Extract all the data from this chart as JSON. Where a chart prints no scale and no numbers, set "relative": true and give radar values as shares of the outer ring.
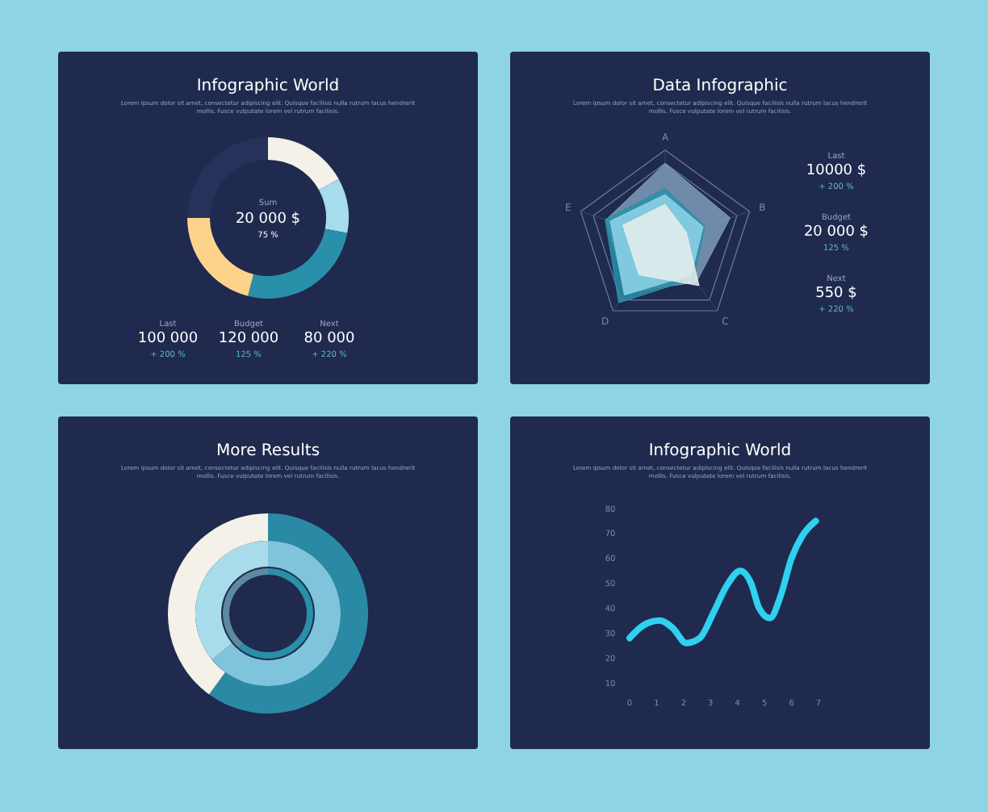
{
  "chart_data": [
    {
      "type": "donut",
      "title": "Infographic World",
      "subtitle": "Lorem ipsum dolor sit amet, consectetur adipiscing elit. Quisque facilisis nulla rutrum lacus hendrerit mollis. Fusce vulputate lorem vel rutrum facilisis.",
      "categories": [
        null,
        null,
        null,
        null,
        null
      ],
      "values": [
        17,
        11,
        26,
        21,
        25
      ],
      "colors": [
        "#f3f1e8",
        "#a6dcec",
        "#2a8fa8",
        "#fdd38b",
        "#26325a"
      ],
      "annotations": [
        "Sum",
        "20 000 $",
        "75 %",
        "Last",
        "100 000",
        "+ 200 %",
        "Budget",
        "120 000",
        "125 %",
        "Next",
        "80 000",
        "+ 220 %"
      ]
    },
    {
      "type": "radar",
      "title": "Data Infographic",
      "subtitle": "Lorem ipsum dolor sit amet, consectetur adipiscing elit. Quisque facilisis nulla rutrum lacus hendrerit mollis. Fusce vulputate lorem vel rutrum facilisis.",
      "categories": [
        "A",
        "B",
        "C",
        "D",
        "E"
      ],
      "relative": true,
      "series": [
        {
          "color": "#7e9cba",
          "values": [
            0.85,
            0.77,
            0.6,
            0.75,
            0.7
          ]
        },
        {
          "color": "#2a8fa8",
          "values": [
            0.57,
            0.47,
            0.55,
            0.89,
            0.71
          ]
        },
        {
          "color": "#8fd3e8",
          "values": [
            0.5,
            0.45,
            0.5,
            0.78,
            0.65
          ]
        },
        {
          "color": "#e8eeee",
          "values": [
            0.39,
            0.25,
            0.65,
            0.5,
            0.5
          ]
        }
      ],
      "annotations": [
        "Last",
        "10000 $",
        "+ 200 %",
        "Budget",
        "20 000 $",
        "125 %",
        "Next",
        "550 $",
        "+ 220 %"
      ]
    },
    {
      "type": "donut",
      "title": "More Results",
      "subtitle": "Lorem ipsum dolor sit amet, consectetur adipiscing elit. Quisque facilisis nulla rutrum lacus hendrerit mollis. Fusce vulputate lorem vel rutrum facilisis.",
      "categories": [
        null,
        null
      ],
      "series": [
        {
          "colors": [
            "#2a8aa5",
            "#f3f1e8"
          ],
          "values": [
            60,
            40
          ]
        },
        {
          "colors": [
            "#7fc4da",
            "#a8dcea"
          ],
          "values": [
            64,
            36
          ]
        },
        {
          "colors": [
            "#2a8fa8",
            "#5d8aa0"
          ],
          "values": [
            61,
            39
          ]
        }
      ]
    },
    {
      "type": "line",
      "title": "Infographic World",
      "subtitle": "Lorem ipsum dolor sit amet, consectetur adipiscing elit. Quisque facilisis nulla rutrum lacus hendrerit mollis. Fusce vulputate lorem vel rutrum facilisis.",
      "x": [
        0,
        0.5,
        1.1,
        1.6,
        2.1,
        2.6,
        3.1,
        3.6,
        4.1,
        4.5,
        4.8,
        5.2,
        5.6,
        6.0,
        6.4,
        6.9
      ],
      "series": [
        {
          "color": "#2fd0f0",
          "values": [
            28,
            33,
            35,
            32,
            26,
            28,
            38,
            49,
            55,
            50,
            40,
            36,
            45,
            60,
            69,
            75
          ]
        }
      ],
      "xlim": [
        0,
        7
      ],
      "xticks": [
        0,
        1,
        2,
        3,
        4,
        5,
        6,
        7
      ],
      "ylim": [
        10,
        80
      ],
      "yticks": [
        10,
        20,
        30,
        40,
        50,
        60,
        70,
        80
      ],
      "grid": false,
      "marker": "none"
    }
  ]
}
